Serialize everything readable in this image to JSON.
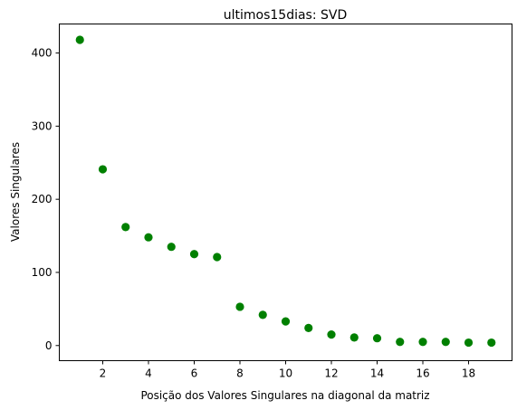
{
  "chart_data": {
    "type": "scatter",
    "title": "ultimos15dias: SVD",
    "xlabel": "Posição dos Valores Singulares na diagonal da matriz",
    "ylabel": "Valores Singulares",
    "x": [
      1,
      2,
      3,
      4,
      5,
      6,
      7,
      8,
      9,
      10,
      11,
      12,
      13,
      14,
      15,
      16,
      17,
      18,
      19
    ],
    "y": [
      418,
      241,
      162,
      148,
      135,
      125,
      121,
      53,
      42,
      33,
      24,
      15,
      11,
      10,
      5,
      5,
      5,
      4,
      4
    ],
    "xlim": [
      0.1,
      19.9
    ],
    "ylim": [
      -20.7,
      439.7
    ],
    "xticks": [
      2,
      4,
      6,
      8,
      10,
      12,
      14,
      16,
      18
    ],
    "yticks": [
      0,
      100,
      200,
      300,
      400
    ],
    "grid": false,
    "color": "#008000"
  }
}
